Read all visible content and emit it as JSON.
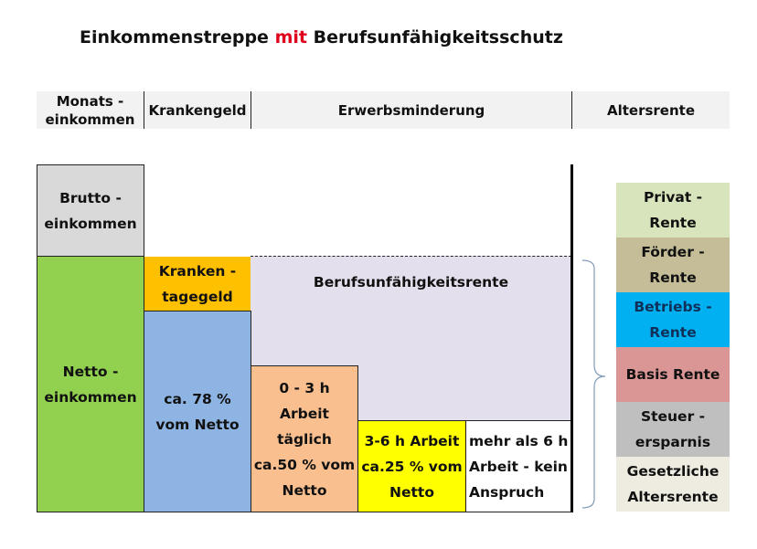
{
  "title": {
    "part1": "Einkommenstreppe ",
    "highlight": "mit",
    "part2": " Berufsunfähigkeitsschutz",
    "highlight_color": "#e0001b"
  },
  "header": [
    "Monats - einkommen",
    "Krankengeld",
    "Erwerbsminderung",
    "Altersrente"
  ],
  "boxes": {
    "brutto": {
      "label": "Brutto - einkommen",
      "color": "#d9d9d9"
    },
    "netto": {
      "label": "Netto - einkommen",
      "color": "#92d050"
    },
    "krankentagegeld": {
      "label": "Kranken - tagegeld",
      "color": "#ffc000"
    },
    "krankengeld": {
      "label": "ca. 78 % vom Netto",
      "color": "#8db4e2"
    },
    "bu_rente": {
      "label": "Berufsunfähigkeitsrente",
      "color": "#e4dfec"
    },
    "em_0_3": {
      "label": "0 - 3 h Arbeit täglich ca.50 % vom Netto",
      "color": "#fabf8f"
    },
    "em_3_6": {
      "label": "3-6 h Arbeit ca.25 % vom Netto",
      "color": "#ffff00"
    },
    "em_6": {
      "label": "mehr als 6 h Arbeit - kein Anspruch",
      "color": "#ffffff"
    }
  },
  "rente": [
    {
      "label": "Privat - Rente",
      "color": "#d8e4bc"
    },
    {
      "label": "Förder - Rente",
      "color": "#c4bd97"
    },
    {
      "label": "Betriebs - Rente",
      "color": "#00b0f0"
    },
    {
      "label": "Basis Rente",
      "color": "#da9694"
    },
    {
      "label": "Steuer - ersparnis",
      "color": "#bfbfbf"
    },
    {
      "label": "Gesetzliche Altersrente",
      "color": "#eeece1"
    }
  ]
}
